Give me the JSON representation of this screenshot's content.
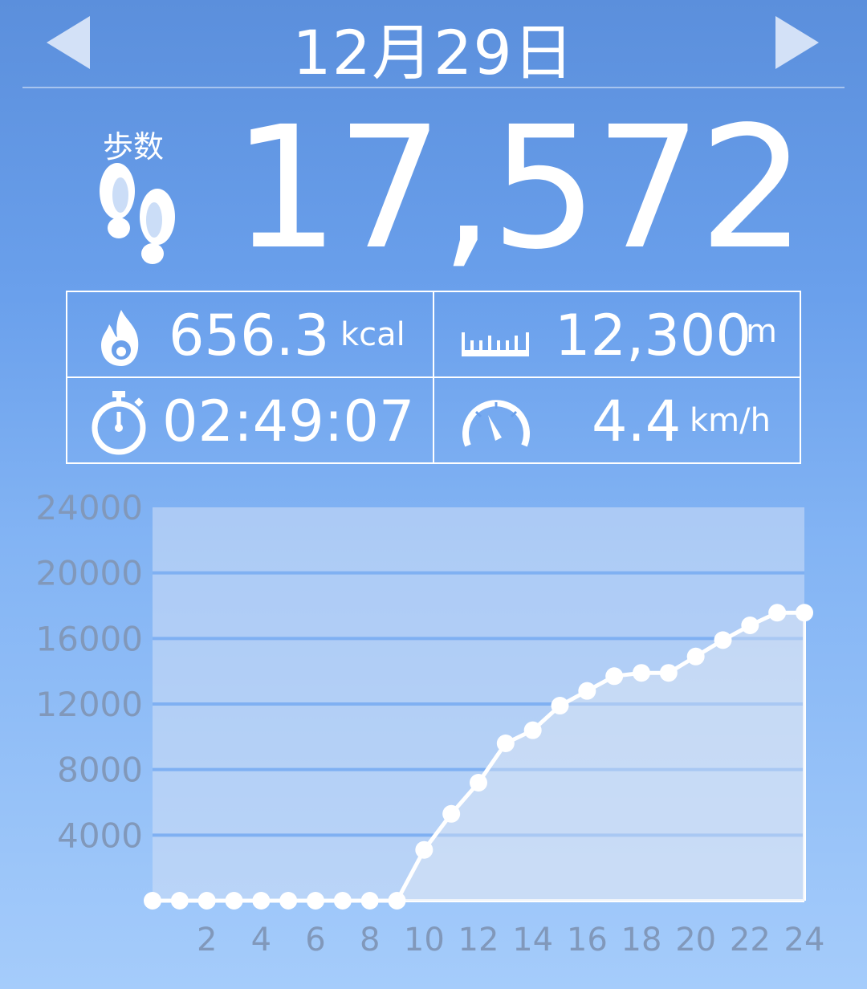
{
  "header": {
    "date": "12月29日",
    "prev_icon": "triangle-left-icon",
    "next_icon": "triangle-right-icon"
  },
  "steps": {
    "label": "歩数",
    "value": "17,572",
    "icon": "footprints-icon"
  },
  "stats": {
    "calories": {
      "value": "656.3",
      "unit": "kcal",
      "icon": "flame-icon"
    },
    "distance": {
      "value": "12,300",
      "unit": "m",
      "icon": "ruler-icon"
    },
    "duration": {
      "value": "02:49:07",
      "icon": "stopwatch-icon"
    },
    "speed": {
      "value": "4.4",
      "unit": "km/h",
      "icon": "speedometer-icon"
    }
  },
  "colors": {
    "tick_text": "#8198ba",
    "plot_fill": "#cfdff5",
    "gridline": "#7fb0f2",
    "line": "#ffffff"
  },
  "chart_data": {
    "type": "line",
    "x": [
      0,
      1,
      2,
      3,
      4,
      5,
      6,
      7,
      8,
      9,
      10,
      11,
      12,
      13,
      14,
      15,
      16,
      17,
      18,
      19,
      20,
      21,
      22,
      23,
      24
    ],
    "y_tick_labels": [
      "4000",
      "8000",
      "12000",
      "16000",
      "20000",
      "24000"
    ],
    "x_tick_labels": [
      "2",
      "4",
      "6",
      "8",
      "10",
      "12",
      "14",
      "16",
      "18",
      "20",
      "22",
      "24"
    ],
    "series": [
      {
        "values": [
          0,
          0,
          0,
          0,
          0,
          0,
          0,
          0,
          0,
          0,
          3100,
          5300,
          7200,
          9600,
          10400,
          11900,
          12800,
          13700,
          13900,
          13900,
          14900,
          15900,
          16800,
          17572,
          17572
        ]
      }
    ],
    "xlim": [
      0,
      24
    ],
    "ylim": [
      0,
      24000
    ],
    "grid": true,
    "title": "",
    "xlabel": "",
    "ylabel": ""
  }
}
